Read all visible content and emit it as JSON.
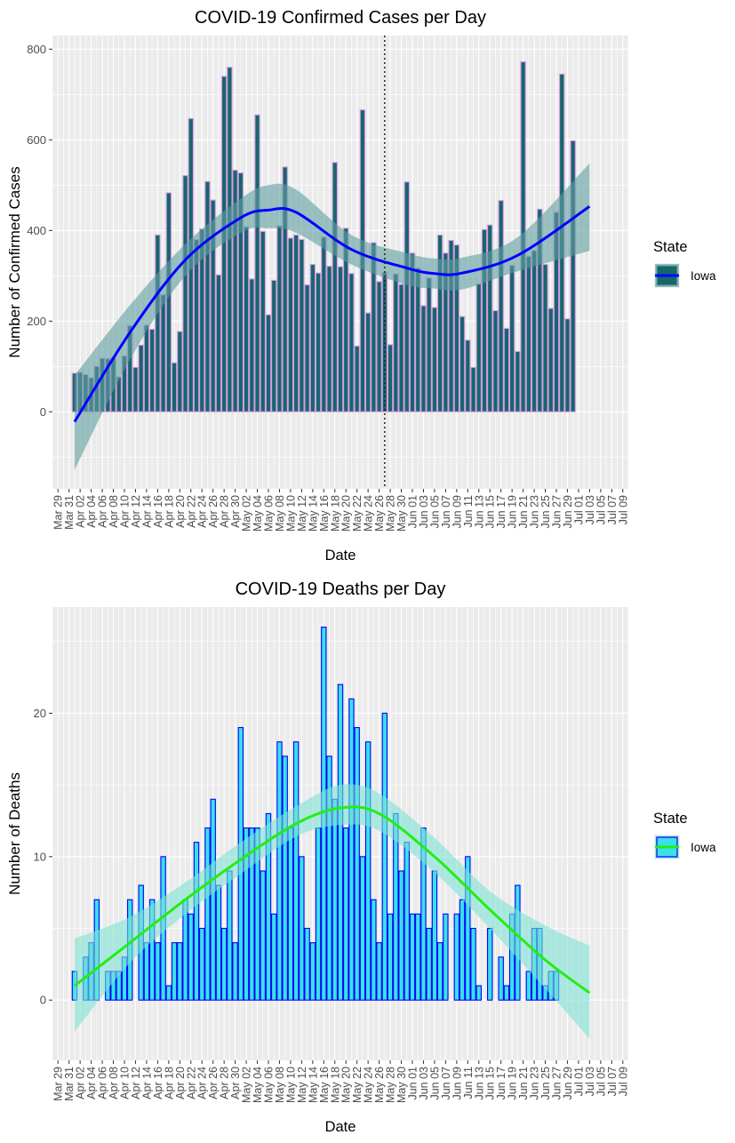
{
  "chart_data": [
    {
      "type": "bar",
      "title": "COVID-19 Confirmed Cases per Day",
      "xlabel": "Date",
      "ylabel": "Number of Confirmed Cases",
      "x_tick_labels": [
        "Mar 29",
        "Mar 31",
        "Apr 02",
        "Apr 04",
        "Apr 06",
        "Apr 08",
        "Apr 10",
        "Apr 12",
        "Apr 14",
        "Apr 16",
        "Apr 18",
        "Apr 20",
        "Apr 22",
        "Apr 24",
        "Apr 26",
        "Apr 28",
        "Apr 30",
        "May 02",
        "May 04",
        "May 06",
        "May 08",
        "May 10",
        "May 12",
        "May 14",
        "May 16",
        "May 18",
        "May 20",
        "May 22",
        "May 24",
        "May 26",
        "May 28",
        "May 30",
        "Jun 01",
        "Jun 03",
        "Jun 05",
        "Jun 07",
        "Jun 09",
        "Jun 11",
        "Jun 13",
        "Jun 15",
        "Jun 17",
        "Jun 19",
        "Jun 21",
        "Jun 23",
        "Jun 25",
        "Jun 27",
        "Jun 29",
        "Jul 01",
        "Jul 03",
        "Jul 05",
        "Jul 07",
        "Jul 09"
      ],
      "y_ticks": [
        0,
        200,
        400,
        600,
        800
      ],
      "ylim": [
        -170,
        830
      ],
      "x_start_date": "2020-04-01",
      "legend": {
        "title": "State",
        "entries": [
          "Iowa"
        ],
        "position": "right"
      },
      "vline_date": "2020-05-27",
      "colors": {
        "bar_fill": "#15676c",
        "bar_outline": "#dd99e6",
        "smooth": "#0000ff",
        "band": "#5f9ea0"
      },
      "series": [
        {
          "name": "Iowa",
          "values": [
            85,
            87,
            82,
            75,
            100,
            118,
            117,
            120,
            77,
            123,
            190,
            98,
            147,
            191,
            182,
            390,
            258,
            483,
            108,
            177,
            521,
            647,
            380,
            403,
            508,
            467,
            302,
            740,
            760,
            533,
            527,
            408,
            293,
            655,
            398,
            214,
            290,
            410,
            540,
            383,
            390,
            380,
            280,
            325,
            306,
            385,
            321,
            550,
            320,
            405,
            305,
            145,
            666,
            218,
            373,
            287,
            307,
            148,
            304,
            281,
            507,
            350,
            317,
            234,
            295,
            230,
            390,
            350,
            378,
            368,
            210,
            158,
            98,
            282,
            402,
            412,
            223,
            466,
            184,
            323,
            133,
            772,
            343,
            356,
            447,
            325,
            228,
            440,
            745,
            205,
            598
          ]
        }
      ],
      "smooth": {
        "x": [
          "2020-04-01",
          "2020-04-11",
          "2020-04-21",
          "2020-05-01",
          "2020-05-06",
          "2020-05-11",
          "2020-05-21",
          "2020-05-31",
          "2020-06-05",
          "2020-06-10",
          "2020-06-20",
          "2020-07-03"
        ],
        "fit": [
          -22,
          175,
          335,
          428,
          445,
          440,
          358,
          317,
          305,
          306,
          345,
          453
        ],
        "lower": [
          -128,
          115,
          300,
          395,
          405,
          395,
          325,
          280,
          272,
          270,
          310,
          355
        ],
        "upper": [
          80,
          235,
          370,
          470,
          500,
          490,
          390,
          350,
          338,
          340,
          385,
          548
        ]
      }
    },
    {
      "type": "bar",
      "title": "COVID-19 Deaths per Day",
      "xlabel": "Date",
      "ylabel": "Number of Deaths",
      "x_tick_labels": [
        "Mar 29",
        "Mar 31",
        "Apr 02",
        "Apr 04",
        "Apr 06",
        "Apr 08",
        "Apr 10",
        "Apr 12",
        "Apr 14",
        "Apr 16",
        "Apr 18",
        "Apr 20",
        "Apr 22",
        "Apr 24",
        "Apr 26",
        "Apr 28",
        "Apr 30",
        "May 02",
        "May 04",
        "May 06",
        "May 08",
        "May 10",
        "May 12",
        "May 14",
        "May 16",
        "May 18",
        "May 20",
        "May 22",
        "May 24",
        "May 26",
        "May 28",
        "May 30",
        "Jun 01",
        "Jun 03",
        "Jun 05",
        "Jun 07",
        "Jun 09",
        "Jun 11",
        "Jun 13",
        "Jun 15",
        "Jun 17",
        "Jun 19",
        "Jun 21",
        "Jun 23",
        "Jun 25",
        "Jun 27",
        "Jun 29",
        "Jul 01",
        "Jul 03",
        "Jul 05",
        "Jul 07",
        "Jul 09"
      ],
      "y_ticks": [
        0,
        10,
        20
      ],
      "ylim": [
        -4.2,
        27.4
      ],
      "x_start_date": "2020-04-01",
      "legend": {
        "title": "State",
        "entries": [
          "Iowa"
        ],
        "position": "right"
      },
      "colors": {
        "bar_fill": "#3ae0e8",
        "bar_outline": "#0000ff",
        "smooth": "#22ee11",
        "band": "#7fe3d5"
      },
      "series": [
        {
          "name": "Iowa",
          "values": [
            2,
            0,
            3,
            4,
            7,
            0,
            2,
            2,
            2,
            3,
            7,
            0,
            8,
            4,
            7,
            4,
            10,
            1,
            4,
            4,
            7,
            6,
            11,
            5,
            12,
            14,
            8,
            5,
            9,
            4,
            19,
            12,
            12,
            12,
            9,
            13,
            6,
            18,
            17,
            12,
            18,
            10,
            5,
            4,
            12,
            26,
            17,
            14,
            22,
            12,
            21,
            19,
            10,
            18,
            7,
            4,
            20,
            6,
            13,
            9,
            11,
            6,
            6,
            12,
            5,
            9,
            4,
            6,
            0,
            6,
            7,
            10,
            5,
            1,
            0,
            5,
            0,
            3,
            1,
            6,
            8,
            0,
            2,
            5,
            5,
            1,
            2,
            2,
            0,
            0,
            0
          ]
        }
      ],
      "smooth": {
        "x": [
          "2020-04-01",
          "2020-04-11",
          "2020-04-21",
          "2020-05-01",
          "2020-05-11",
          "2020-05-19",
          "2020-05-26",
          "2020-06-05",
          "2020-06-15",
          "2020-06-25",
          "2020-07-03"
        ],
        "fit": [
          1,
          4,
          7,
          9.8,
          12.3,
          13.4,
          13,
          10,
          6.3,
          2.8,
          0.5
        ],
        "lower": [
          -2.2,
          2.6,
          6,
          8.8,
          11.4,
          12.2,
          11.8,
          8.9,
          5,
          0.8,
          -2.7
        ],
        "upper": [
          4.3,
          5.8,
          8.2,
          11,
          13.5,
          15,
          14.4,
          11.3,
          7.6,
          5.2,
          3.8
        ]
      }
    }
  ]
}
